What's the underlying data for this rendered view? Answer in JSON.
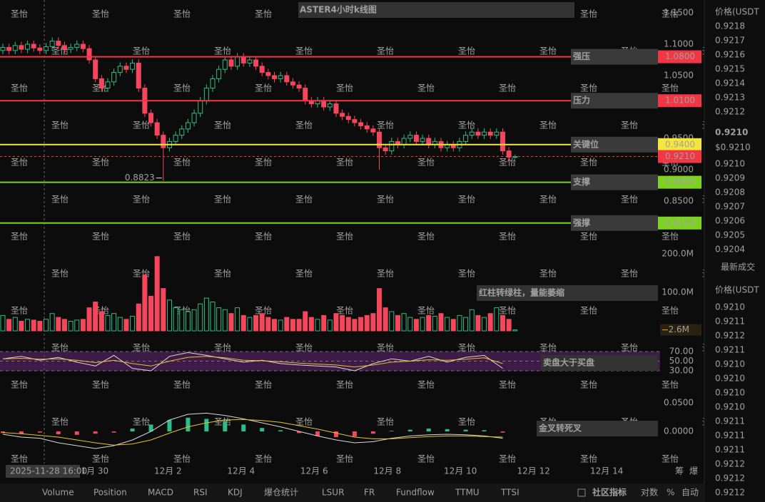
{
  "chart_data": [
    {
      "type": "candlestick",
      "title": "ASTER4小时k线图",
      "up_color": "#2ebd85",
      "down_color": "#f6465d",
      "xlim": [
        -0.46,
        106.5
      ],
      "xticks": [
        {
          "value": 14.9,
          "label": "1月 30"
        },
        {
          "value": 26.75,
          "label": "12月 2"
        },
        {
          "value": 38.6,
          "label": "12月 4"
        },
        {
          "value": 50.45,
          "label": "12月 6"
        },
        {
          "value": 62.3,
          "label": "12月 8"
        },
        {
          "value": 74.15,
          "label": "12月 10"
        },
        {
          "value": 86.0,
          "label": "12月 12"
        },
        {
          "value": 97.85,
          "label": "12月 14"
        }
      ],
      "ylim": [
        0.7784,
        1.1705
      ],
      "yticks": [
        {
          "value": 1.15,
          "label": "1.1500"
        },
        {
          "value": 1.1,
          "label": "1.1000"
        },
        {
          "value": 1.05,
          "label": "1.0500"
        },
        {
          "value": 0.95,
          "label": "0.9500"
        },
        {
          "value": 0.9,
          "label": "0.9000"
        },
        {
          "value": 0.85,
          "label": "0.8500"
        }
      ],
      "open": [
        1.09,
        1.095,
        1.09,
        1.098,
        1.092,
        1.1,
        1.094,
        1.09,
        1.096,
        1.105,
        1.098,
        1.092,
        1.095,
        1.1,
        1.093,
        1.075,
        1.045,
        1.03,
        1.04,
        1.055,
        1.065,
        1.06,
        1.07,
        1.03,
        0.99,
        0.975,
        0.955,
        0.935,
        0.945,
        0.955,
        0.965,
        0.975,
        0.99,
        1.01,
        1.03,
        1.045,
        1.06,
        1.075,
        1.065,
        1.08,
        1.07,
        1.075,
        1.065,
        1.055,
        1.05,
        1.045,
        1.05,
        1.04,
        1.035,
        1.03,
        1.01,
        1.005,
        1.01,
        1.0,
        1.005,
        0.99,
        0.985,
        0.98,
        0.975,
        0.97,
        0.965,
        0.96,
        0.935,
        0.93,
        0.945,
        0.94,
        0.95,
        0.955,
        0.945,
        0.95,
        0.94,
        0.945,
        0.935,
        0.94,
        0.935,
        0.945,
        0.955,
        0.96,
        0.955,
        0.96,
        0.955,
        0.96,
        0.93,
        0.92
      ],
      "high": [
        1.101,
        1.101,
        1.104,
        1.104,
        1.106,
        1.106,
        1.1,
        1.102,
        1.111,
        1.111,
        1.104,
        1.101,
        1.106,
        1.106,
        1.099,
        1.081,
        1.051,
        1.046,
        1.061,
        1.071,
        1.071,
        1.076,
        1.076,
        1.036,
        0.996,
        0.981,
        0.961,
        0.951,
        0.961,
        0.971,
        0.981,
        0.996,
        1.016,
        1.036,
        1.051,
        1.066,
        1.081,
        1.081,
        1.086,
        1.086,
        1.081,
        1.081,
        1.071,
        1.061,
        1.056,
        1.056,
        1.056,
        1.046,
        1.041,
        1.036,
        1.016,
        1.016,
        1.016,
        1.011,
        1.011,
        0.996,
        0.991,
        0.986,
        0.981,
        0.976,
        0.971,
        0.966,
        0.941,
        0.951,
        0.951,
        0.956,
        0.961,
        0.961,
        0.956,
        0.956,
        0.951,
        0.951,
        0.946,
        0.946,
        0.951,
        0.961,
        0.966,
        0.966,
        0.966,
        0.966,
        0.966,
        0.966,
        0.936,
        0.924
      ],
      "low": [
        1.084,
        1.084,
        1.084,
        1.086,
        1.086,
        1.088,
        1.084,
        1.084,
        1.09,
        1.092,
        1.086,
        1.086,
        1.089,
        1.087,
        1.069,
        1.039,
        1.024,
        1.024,
        1.034,
        1.049,
        1.054,
        1.054,
        1.024,
        0.984,
        0.969,
        0.949,
        0.8823,
        0.929,
        0.939,
        0.949,
        0.959,
        0.969,
        0.984,
        1.004,
        1.024,
        1.039,
        1.054,
        1.059,
        1.059,
        1.064,
        1.064,
        1.059,
        1.049,
        1.044,
        1.039,
        1.039,
        1.034,
        1.029,
        1.024,
        1.004,
        0.999,
        0.999,
        0.994,
        0.994,
        0.984,
        0.979,
        0.974,
        0.969,
        0.964,
        0.959,
        0.954,
        0.9,
        0.924,
        0.924,
        0.934,
        0.934,
        0.944,
        0.939,
        0.939,
        0.934,
        0.934,
        0.929,
        0.929,
        0.929,
        0.929,
        0.939,
        0.949,
        0.949,
        0.949,
        0.949,
        0.949,
        0.924,
        0.914,
        0.917
      ],
      "close": [
        1.095,
        1.09,
        1.098,
        1.092,
        1.1,
        1.094,
        1.09,
        1.096,
        1.105,
        1.098,
        1.092,
        1.095,
        1.1,
        1.093,
        1.075,
        1.045,
        1.03,
        1.04,
        1.055,
        1.065,
        1.06,
        1.07,
        1.03,
        0.99,
        0.975,
        0.955,
        0.935,
        0.945,
        0.955,
        0.965,
        0.975,
        0.99,
        1.01,
        1.03,
        1.045,
        1.06,
        1.075,
        1.065,
        1.08,
        1.07,
        1.075,
        1.065,
        1.055,
        1.05,
        1.045,
        1.05,
        1.04,
        1.035,
        1.03,
        1.01,
        1.005,
        1.01,
        1.0,
        1.005,
        0.99,
        0.985,
        0.98,
        0.975,
        0.97,
        0.965,
        0.96,
        0.935,
        0.93,
        0.945,
        0.94,
        0.95,
        0.955,
        0.945,
        0.95,
        0.94,
        0.945,
        0.935,
        0.94,
        0.935,
        0.945,
        0.955,
        0.96,
        0.955,
        0.96,
        0.955,
        0.96,
        0.93,
        0.92,
        0.921
      ],
      "low_marker": {
        "x": 26,
        "value": 0.8823,
        "label": "0.8823"
      },
      "levels": [
        {
          "value": 1.08,
          "label": "1.0800",
          "note": "强压",
          "color": "#f23645",
          "text_color": "#ffffff"
        },
        {
          "value": 1.01,
          "label": "1.0100",
          "note": "压力",
          "color": "#f23645",
          "text_color": "#ffffff"
        },
        {
          "value": 0.94,
          "label": "0.9400",
          "note": "关键位",
          "color": "#f5e63c",
          "text_color": "#000000"
        },
        {
          "value": 0.88,
          "label": "0.8800",
          "note": "支撑",
          "color": "#7ed321",
          "text_color": "#000000"
        },
        {
          "value": 0.815,
          "label": "0.8150",
          "note": "强撑",
          "color": "#7ed321",
          "text_color": "#000000"
        }
      ],
      "current": {
        "value": 0.921,
        "label": "0.9210",
        "color": "#f23645"
      }
    },
    {
      "type": "bar",
      "annotation": "红柱转绿柱，量能萎缩",
      "ylim": [
        -11.1,
        220.4
      ],
      "yticks": [
        {
          "value": 200,
          "label": "200.0M"
        },
        {
          "value": 100,
          "label": "100.0M"
        }
      ],
      "values": [
        40,
        30,
        35,
        25,
        30,
        28,
        25,
        30,
        45,
        35,
        30,
        25,
        28,
        30,
        60,
        75,
        50,
        40,
        45,
        35,
        30,
        38,
        70,
        145,
        90,
        193,
        110,
        80,
        60,
        55,
        50,
        55,
        70,
        85,
        75,
        60,
        55,
        45,
        60,
        40,
        35,
        40,
        45,
        35,
        30,
        28,
        35,
        30,
        30,
        50,
        35,
        30,
        40,
        28,
        45,
        40,
        35,
        30,
        35,
        40,
        45,
        110,
        60,
        50,
        40,
        45,
        35,
        30,
        35,
        40,
        38,
        45,
        35,
        30,
        40,
        35,
        55,
        40,
        35,
        45,
        60,
        40,
        30,
        2.6
      ],
      "current": {
        "value": 2.6,
        "label": "2.6M"
      }
    },
    {
      "type": "line",
      "annotation": "卖盘大于买盘",
      "x": [
        0,
        3,
        6,
        9,
        12,
        15,
        18,
        21,
        24,
        27,
        30,
        33,
        36,
        39,
        42,
        45,
        48,
        51,
        54,
        57,
        60,
        63,
        66,
        69,
        72,
        75,
        78,
        81
      ],
      "ylim": [
        7.8,
        81.9
      ],
      "yticks": [
        {
          "value": 70,
          "label": "70.00"
        },
        {
          "value": 50,
          "label": "50.00"
        },
        {
          "value": 30,
          "label": "30.00"
        }
      ],
      "band_color": "#6a2a7a",
      "series": [
        {
          "color": "#d8d8d8",
          "values": [
            55,
            60,
            52,
            58,
            48,
            40,
            62,
            35,
            30,
            60,
            68,
            62,
            55,
            48,
            52,
            45,
            42,
            40,
            38,
            30,
            45,
            55,
            50,
            60,
            48,
            58,
            62,
            35
          ]
        },
        {
          "color": "#e6c229",
          "values": [
            55,
            56,
            54,
            55,
            52,
            47,
            52,
            45,
            40,
            50,
            58,
            60,
            57,
            52,
            51,
            49,
            46,
            44,
            42,
            38,
            42,
            48,
            50,
            53,
            52,
            54,
            57,
            45
          ]
        }
      ]
    },
    {
      "type": "macd",
      "annotation": "金叉转死叉",
      "x": [
        0,
        3,
        6,
        9,
        12,
        15,
        18,
        21,
        24,
        27,
        30,
        33,
        36,
        39,
        42,
        45,
        48,
        51,
        54,
        57,
        60,
        63,
        66,
        69,
        72,
        75,
        78,
        81
      ],
      "ylim": [
        -0.05625,
        0.08125
      ],
      "yticks": [
        {
          "value": 0.05,
          "label": "0.0500"
        },
        {
          "value": 0,
          "label": "0.0000"
        }
      ],
      "histogram": [
        -0.003,
        -0.004,
        -0.002,
        -0.005,
        -0.006,
        -0.004,
        -0.002,
        0.005,
        0.012,
        0.02,
        0.024,
        0.022,
        0.018,
        0.012,
        0.006,
        0.002,
        -0.003,
        -0.008,
        -0.01,
        -0.009,
        -0.004,
        0.001,
        0.003,
        0.005,
        0.004,
        0.003,
        0.002,
        -0.002
      ],
      "series": [
        {
          "color": "#d8d8d8",
          "values": [
            -0.005,
            -0.01,
            -0.012,
            -0.02,
            -0.025,
            -0.03,
            -0.025,
            -0.015,
            0.0,
            0.02,
            0.03,
            0.032,
            0.028,
            0.022,
            0.015,
            0.008,
            0.0,
            -0.008,
            -0.015,
            -0.02,
            -0.018,
            -0.012,
            -0.008,
            -0.006,
            -0.005,
            -0.006,
            -0.008,
            -0.012
          ]
        },
        {
          "color": "#e6c229",
          "values": [
            -0.002,
            -0.004,
            -0.007,
            -0.01,
            -0.015,
            -0.02,
            -0.024,
            -0.022,
            -0.015,
            -0.003,
            0.008,
            0.015,
            0.02,
            0.021,
            0.019,
            0.016,
            0.01,
            0.004,
            -0.003,
            -0.01,
            -0.013,
            -0.013,
            -0.011,
            -0.009,
            -0.008,
            -0.008,
            -0.009,
            -0.01
          ]
        }
      ]
    }
  ],
  "watermark": "圣怡",
  "cursor_date": "2025-11-28 16:00",
  "side_buttons": [
    "筹",
    "爆"
  ],
  "order_book": {
    "header": "价格(USDT",
    "asks": [
      "0.9218",
      "0.9217",
      "0.9216",
      "0.9215",
      "0.9214",
      "0.9213",
      "0.9212"
    ],
    "price": "0.9210",
    "price_usd": "$0.9210",
    "bids": [
      "0.9210",
      "0.9209",
      "0.9208",
      "0.9207",
      "0.9206",
      "0.9205",
      "0.9204"
    ]
  },
  "trades": {
    "title": "最新成交",
    "header": "价格(USDT",
    "rows": [
      {
        "price": "0.9210",
        "side": "sell"
      },
      {
        "price": "0.9211",
        "side": "sell"
      },
      {
        "price": "0.9212",
        "side": "buy"
      },
      {
        "price": "0.9211",
        "side": "buy"
      },
      {
        "price": "0.9210",
        "side": "buy"
      },
      {
        "price": "0.9210",
        "side": "buy"
      },
      {
        "price": "0.9210",
        "side": "sell"
      },
      {
        "price": "0.9210",
        "side": "sell"
      },
      {
        "price": "0.9211",
        "side": "buy"
      },
      {
        "price": "0.9211",
        "side": "buy"
      },
      {
        "price": "0.9211",
        "side": "sell"
      },
      {
        "price": "0.9212",
        "side": "buy"
      },
      {
        "price": "0.9212",
        "side": "buy"
      },
      {
        "price": "0.9212",
        "side": "sell"
      }
    ]
  },
  "toolbar": {
    "tabs": [
      {
        "label": "Volume",
        "active": true
      },
      {
        "label": "Position",
        "active": false
      },
      {
        "label": "MACD",
        "active": true
      },
      {
        "label": "RSI",
        "active": true
      },
      {
        "label": "KDJ",
        "active": false
      },
      {
        "label": "爆仓统计",
        "active": false
      },
      {
        "label": "LSUR",
        "active": false
      },
      {
        "label": "FR",
        "active": false
      },
      {
        "label": "Fundflow",
        "active": false
      },
      {
        "label": "TTMU",
        "active": false
      },
      {
        "label": "TTSI",
        "active": false
      }
    ],
    "right": [
      "社区指标",
      "对数",
      "%",
      "自动"
    ]
  }
}
